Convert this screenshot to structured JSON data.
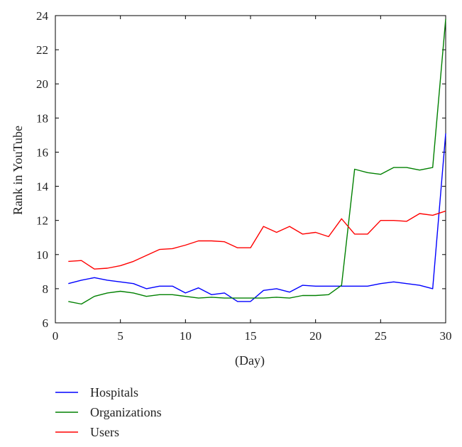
{
  "chart_data": {
    "type": "line",
    "xlabel": "(Day)",
    "ylabel": "Rank in YouTube",
    "xlim": [
      0,
      30
    ],
    "ylim": [
      6,
      24
    ],
    "x_ticks": [
      0,
      5,
      10,
      15,
      20,
      25,
      30
    ],
    "y_ticks": [
      6,
      8,
      10,
      12,
      14,
      16,
      18,
      20,
      22,
      24
    ],
    "grid": false,
    "legend_position": "bottom-left, below plot",
    "x": [
      1,
      2,
      3,
      4,
      5,
      6,
      7,
      8,
      9,
      10,
      11,
      12,
      13,
      14,
      15,
      16,
      17,
      18,
      19,
      20,
      21,
      22,
      23,
      24,
      25,
      26,
      27,
      28,
      29,
      30
    ],
    "series": [
      {
        "name": "Hospitals",
        "color": "#0000ff",
        "values": [
          8.3,
          8.5,
          8.65,
          8.5,
          8.4,
          8.3,
          8.0,
          8.15,
          8.15,
          7.75,
          8.05,
          7.65,
          7.75,
          7.25,
          7.25,
          7.9,
          8.0,
          7.8,
          8.2,
          8.15,
          8.15,
          8.15,
          8.15,
          8.15,
          8.3,
          8.4,
          8.3,
          8.2,
          8.0,
          17.1
        ]
      },
      {
        "name": "Organizations",
        "color": "#008000",
        "values": [
          7.25,
          7.1,
          7.55,
          7.75,
          7.85,
          7.75,
          7.55,
          7.65,
          7.65,
          7.55,
          7.45,
          7.5,
          7.45,
          7.45,
          7.45,
          7.45,
          7.5,
          7.45,
          7.6,
          7.6,
          7.65,
          8.2,
          15.0,
          14.8,
          14.7,
          15.1,
          15.1,
          14.95,
          15.1,
          23.8
        ]
      },
      {
        "name": "Users",
        "color": "#ff0000",
        "values": [
          9.6,
          9.65,
          9.15,
          9.2,
          9.35,
          9.6,
          9.95,
          10.3,
          10.35,
          10.55,
          10.8,
          10.8,
          10.75,
          10.4,
          10.4,
          11.65,
          11.3,
          11.65,
          11.2,
          11.3,
          11.05,
          12.1,
          11.2,
          11.2,
          12.0,
          12.0,
          11.95,
          12.4,
          12.3,
          12.55
        ]
      }
    ]
  }
}
